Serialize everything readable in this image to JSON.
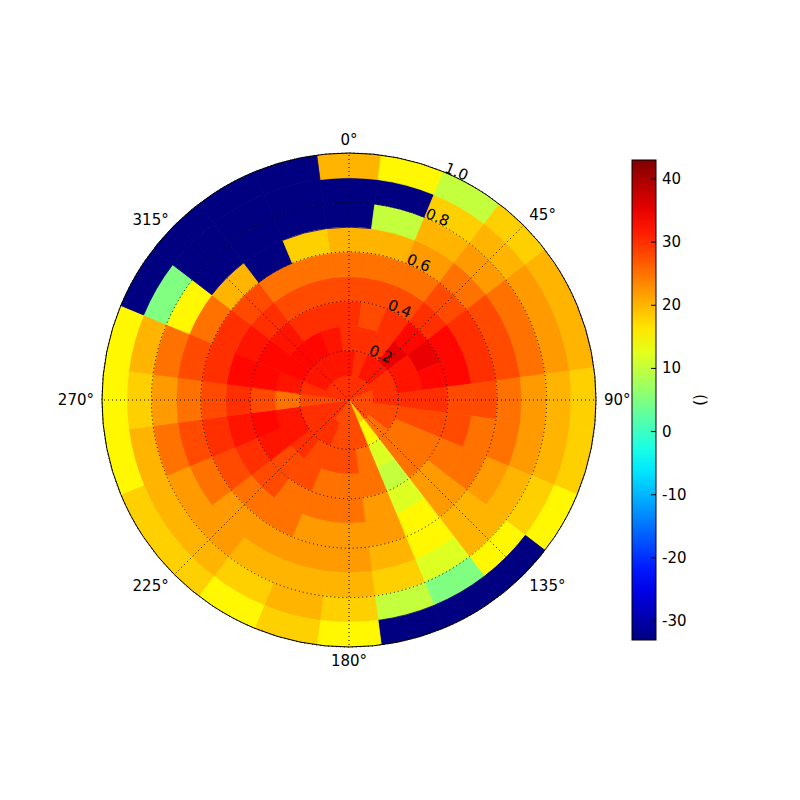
{
  "chart_data": {
    "type": "polar_heatmap",
    "grid": true,
    "theta_bins": [
      -7.5,
      7.5,
      22.5,
      37.5,
      52.5,
      67.5,
      82.5,
      97.5,
      112.5,
      127.5,
      142.5,
      157.5,
      172.5,
      187.5,
      202.5,
      217.5,
      232.5,
      247.5,
      262.5,
      277.5,
      292.5,
      307.5,
      322.5,
      337.5,
      352.5
    ],
    "r_bins": [
      0,
      0.1,
      0.2,
      0.3,
      0.4,
      0.5,
      0.6,
      0.7,
      0.8,
      0.9,
      1.0
    ],
    "cells": [
      [
        30,
        32,
        30,
        30,
        28,
        25,
        20,
        -33,
        -33,
        20
      ],
      [
        30,
        30,
        30,
        28,
        28,
        25,
        20,
        10,
        -33,
        15
      ],
      [
        30,
        32,
        30,
        30,
        28,
        25,
        22,
        20,
        18,
        10
      ],
      [
        30,
        32,
        35,
        33,
        30,
        28,
        25,
        22,
        20,
        18
      ],
      [
        30,
        30,
        32,
        35,
        33,
        30,
        28,
        25,
        22,
        20
      ],
      [
        28,
        30,
        32,
        33,
        33,
        30,
        28,
        25,
        22,
        20
      ],
      [
        28,
        30,
        30,
        30,
        28,
        28,
        25,
        22,
        20,
        18
      ],
      [
        28,
        28,
        28,
        28,
        28,
        25,
        25,
        22,
        20,
        18
      ],
      [
        28,
        28,
        25,
        25,
        25,
        25,
        22,
        20,
        18,
        15
      ],
      [
        28,
        25,
        25,
        25,
        22,
        22,
        20,
        20,
        15,
        -33
      ],
      [
        18,
        15,
        12,
        10,
        12,
        15,
        15,
        12,
        5,
        -33
      ],
      [
        28,
        28,
        25,
        25,
        22,
        22,
        20,
        18,
        10,
        -33
      ],
      [
        28,
        28,
        28,
        25,
        25,
        22,
        22,
        20,
        18,
        15
      ],
      [
        28,
        28,
        28,
        25,
        25,
        22,
        22,
        20,
        20,
        18
      ],
      [
        28,
        30,
        28,
        28,
        25,
        25,
        22,
        20,
        18,
        15
      ],
      [
        30,
        30,
        30,
        28,
        28,
        25,
        22,
        22,
        20,
        18
      ],
      [
        30,
        30,
        32,
        32,
        30,
        28,
        25,
        22,
        20,
        18
      ],
      [
        30,
        30,
        32,
        33,
        32,
        30,
        28,
        25,
        20,
        15
      ],
      [
        28,
        28,
        25,
        28,
        30,
        28,
        25,
        22,
        18,
        15
      ],
      [
        30,
        30,
        32,
        33,
        33,
        30,
        28,
        25,
        20,
        15
      ],
      [
        30,
        32,
        33,
        33,
        32,
        30,
        25,
        15,
        5,
        -33
      ],
      [
        30,
        32,
        33,
        32,
        30,
        28,
        20,
        -33,
        -33,
        -33
      ],
      [
        30,
        32,
        33,
        30,
        28,
        25,
        -33,
        -33,
        -33,
        -33
      ],
      [
        30,
        32,
        32,
        30,
        28,
        25,
        18,
        -33,
        -33,
        -33
      ]
    ],
    "rlim": [
      0,
      1
    ],
    "rticks": [
      0.2,
      0.4,
      0.6,
      0.8,
      {
        "value": 1,
        "label": "1.0"
      }
    ],
    "theta_ticks": [
      {
        "value": 0,
        "label": "0°"
      },
      {
        "value": 45,
        "label": "45°"
      },
      {
        "value": 90,
        "label": "90°"
      },
      {
        "value": 135,
        "label": "135°"
      },
      {
        "value": 180,
        "label": "180°"
      },
      {
        "value": 225,
        "label": "225°"
      },
      {
        "value": 270,
        "label": "270°"
      },
      {
        "value": 315,
        "label": "315°"
      }
    ],
    "colorbar": {
      "label": "()",
      "range": [
        -33,
        43
      ],
      "ticks": [
        -30,
        -20,
        -10,
        0,
        10,
        20,
        30,
        40
      ]
    }
  }
}
